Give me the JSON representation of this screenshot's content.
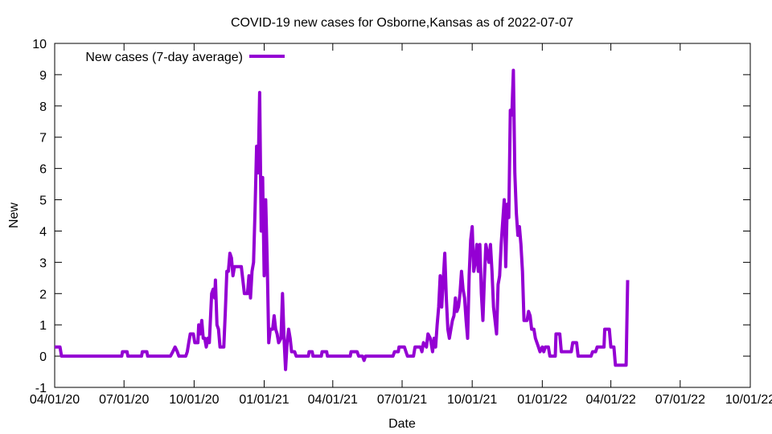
{
  "chart_data": {
    "type": "line",
    "title": "COVID-19 new cases for Osborne,Kansas as of 2022-07-07",
    "xlabel": "Date",
    "ylabel": "New",
    "xlim": [
      "2020-04-01",
      "2022-10-01"
    ],
    "ylim": [
      -1,
      10
    ],
    "grid": false,
    "legend_position": "top-left",
    "x_tick_labels": [
      "04/01/20",
      "07/01/20",
      "10/01/20",
      "01/01/21",
      "04/01/21",
      "07/01/21",
      "10/01/21",
      "01/01/22",
      "04/01/22",
      "07/01/22",
      "10/01/22"
    ],
    "y_tick_labels": [
      "-1",
      "0",
      "1",
      "2",
      "3",
      "4",
      "5",
      "6",
      "7",
      "8",
      "9",
      "10"
    ],
    "series": [
      {
        "name": "New cases (7-day average)",
        "color": "#9400d3",
        "points": [
          [
            "2020-04-01",
            0.29
          ],
          [
            "2020-04-08",
            0.29
          ],
          [
            "2020-04-10",
            0
          ],
          [
            "2020-06-28",
            0
          ],
          [
            "2020-06-29",
            0.14
          ],
          [
            "2020-07-05",
            0.14
          ],
          [
            "2020-07-06",
            0
          ],
          [
            "2020-07-24",
            0
          ],
          [
            "2020-07-25",
            0.14
          ],
          [
            "2020-07-31",
            0.14
          ],
          [
            "2020-08-01",
            0
          ],
          [
            "2020-08-31",
            0
          ],
          [
            "2020-09-03",
            0.14
          ],
          [
            "2020-09-06",
            0.29
          ],
          [
            "2020-09-09",
            0.14
          ],
          [
            "2020-09-11",
            0
          ],
          [
            "2020-09-20",
            0
          ],
          [
            "2020-09-22",
            0.14
          ],
          [
            "2020-09-24",
            0.43
          ],
          [
            "2020-09-26",
            0.71
          ],
          [
            "2020-09-30",
            0.71
          ],
          [
            "2020-10-02",
            0.43
          ],
          [
            "2020-10-06",
            0.43
          ],
          [
            "2020-10-07",
            1.0
          ],
          [
            "2020-10-09",
            0.71
          ],
          [
            "2020-10-11",
            1.14
          ],
          [
            "2020-10-13",
            0.57
          ],
          [
            "2020-10-15",
            0.57
          ],
          [
            "2020-10-17",
            0.29
          ],
          [
            "2020-10-19",
            0.57
          ],
          [
            "2020-10-21",
            0.43
          ],
          [
            "2020-10-24",
            2.0
          ],
          [
            "2020-10-26",
            2.14
          ],
          [
            "2020-10-28",
            1.86
          ],
          [
            "2020-10-29",
            2.43
          ],
          [
            "2020-10-31",
            1.0
          ],
          [
            "2020-11-02",
            0.86
          ],
          [
            "2020-11-04",
            0.29
          ],
          [
            "2020-11-09",
            0.29
          ],
          [
            "2020-11-11",
            1.43
          ],
          [
            "2020-11-13",
            2.71
          ],
          [
            "2020-11-15",
            2.71
          ],
          [
            "2020-11-17",
            3.29
          ],
          [
            "2020-11-19",
            3.14
          ],
          [
            "2020-11-21",
            2.57
          ],
          [
            "2020-11-23",
            2.86
          ],
          [
            "2020-12-02",
            2.86
          ],
          [
            "2020-12-04",
            2.43
          ],
          [
            "2020-12-06",
            2.0
          ],
          [
            "2020-12-10",
            2.0
          ],
          [
            "2020-12-12",
            2.57
          ],
          [
            "2020-12-14",
            1.86
          ],
          [
            "2020-12-16",
            2.71
          ],
          [
            "2020-12-18",
            3.0
          ],
          [
            "2020-12-20",
            4.71
          ],
          [
            "2020-12-22",
            6.71
          ],
          [
            "2020-12-24",
            5.86
          ],
          [
            "2020-12-26",
            8.43
          ],
          [
            "2020-12-28",
            4.0
          ],
          [
            "2020-12-30",
            5.71
          ],
          [
            "2021-01-01",
            2.57
          ],
          [
            "2021-01-03",
            5.0
          ],
          [
            "2021-01-05",
            3.0
          ],
          [
            "2021-01-07",
            0.43
          ],
          [
            "2021-01-09",
            0.86
          ],
          [
            "2021-01-12",
            0.86
          ],
          [
            "2021-01-14",
            1.29
          ],
          [
            "2021-01-16",
            0.86
          ],
          [
            "2021-01-18",
            0.71
          ],
          [
            "2021-01-20",
            0.43
          ],
          [
            "2021-01-23",
            0.57
          ],
          [
            "2021-01-25",
            2.0
          ],
          [
            "2021-01-27",
            0.57
          ],
          [
            "2021-01-29",
            -0.43
          ],
          [
            "2021-01-31",
            0.43
          ],
          [
            "2021-02-02",
            0.86
          ],
          [
            "2021-02-04",
            0.57
          ],
          [
            "2021-02-06",
            0.14
          ],
          [
            "2021-02-10",
            0.14
          ],
          [
            "2021-02-12",
            0
          ],
          [
            "2021-02-28",
            0
          ],
          [
            "2021-03-01",
            0.14
          ],
          [
            "2021-03-05",
            0.14
          ],
          [
            "2021-03-06",
            0
          ],
          [
            "2021-03-17",
            0
          ],
          [
            "2021-03-18",
            0.14
          ],
          [
            "2021-03-24",
            0.14
          ],
          [
            "2021-03-25",
            0
          ],
          [
            "2021-04-24",
            0
          ],
          [
            "2021-04-25",
            0.14
          ],
          [
            "2021-05-03",
            0.14
          ],
          [
            "2021-05-05",
            0
          ],
          [
            "2021-05-10",
            0
          ],
          [
            "2021-05-12",
            -0.14
          ],
          [
            "2021-05-14",
            0
          ],
          [
            "2021-06-19",
            0
          ],
          [
            "2021-06-21",
            0.14
          ],
          [
            "2021-06-26",
            0.14
          ],
          [
            "2021-06-27",
            0.29
          ],
          [
            "2021-07-04",
            0.29
          ],
          [
            "2021-07-06",
            0.14
          ],
          [
            "2021-07-08",
            0
          ],
          [
            "2021-07-16",
            0
          ],
          [
            "2021-07-18",
            0.29
          ],
          [
            "2021-07-25",
            0.29
          ],
          [
            "2021-07-27",
            0.14
          ],
          [
            "2021-07-29",
            0.43
          ],
          [
            "2021-08-02",
            0.29
          ],
          [
            "2021-08-04",
            0.71
          ],
          [
            "2021-08-07",
            0.57
          ],
          [
            "2021-08-10",
            0.14
          ],
          [
            "2021-08-12",
            0.57
          ],
          [
            "2021-08-14",
            0.29
          ],
          [
            "2021-08-16",
            1.0
          ],
          [
            "2021-08-18",
            1.57
          ],
          [
            "2021-08-20",
            2.57
          ],
          [
            "2021-08-22",
            1.57
          ],
          [
            "2021-08-24",
            2.43
          ],
          [
            "2021-08-26",
            3.29
          ],
          [
            "2021-08-28",
            1.86
          ],
          [
            "2021-08-30",
            0.86
          ],
          [
            "2021-09-01",
            0.57
          ],
          [
            "2021-09-03",
            0.86
          ],
          [
            "2021-09-05",
            1.14
          ],
          [
            "2021-09-07",
            1.29
          ],
          [
            "2021-09-09",
            1.86
          ],
          [
            "2021-09-11",
            1.43
          ],
          [
            "2021-09-13",
            1.57
          ],
          [
            "2021-09-15",
            2.0
          ],
          [
            "2021-09-17",
            2.71
          ],
          [
            "2021-09-19",
            2.14
          ],
          [
            "2021-09-21",
            1.86
          ],
          [
            "2021-09-23",
            1.14
          ],
          [
            "2021-09-25",
            0.57
          ],
          [
            "2021-09-27",
            2.57
          ],
          [
            "2021-09-29",
            3.71
          ],
          [
            "2021-10-01",
            4.14
          ],
          [
            "2021-10-03",
            2.71
          ],
          [
            "2021-10-05",
            3.0
          ],
          [
            "2021-10-07",
            3.57
          ],
          [
            "2021-10-09",
            2.71
          ],
          [
            "2021-10-11",
            3.57
          ],
          [
            "2021-10-13",
            2.0
          ],
          [
            "2021-10-15",
            1.14
          ],
          [
            "2021-10-17",
            2.43
          ],
          [
            "2021-10-19",
            3.57
          ],
          [
            "2021-10-21",
            3.29
          ],
          [
            "2021-10-23",
            3.0
          ],
          [
            "2021-10-25",
            3.57
          ],
          [
            "2021-10-27",
            2.71
          ],
          [
            "2021-10-29",
            1.57
          ],
          [
            "2021-10-31",
            1.14
          ],
          [
            "2021-11-02",
            0.71
          ],
          [
            "2021-11-04",
            2.29
          ],
          [
            "2021-11-06",
            2.57
          ],
          [
            "2021-11-08",
            3.57
          ],
          [
            "2021-11-10",
            4.29
          ],
          [
            "2021-11-12",
            5.0
          ],
          [
            "2021-11-14",
            2.86
          ],
          [
            "2021-11-16",
            4.86
          ],
          [
            "2021-11-18",
            4.43
          ],
          [
            "2021-11-20",
            7.86
          ],
          [
            "2021-11-22",
            7.71
          ],
          [
            "2021-11-24",
            9.14
          ],
          [
            "2021-11-26",
            5.86
          ],
          [
            "2021-11-28",
            4.57
          ],
          [
            "2021-11-30",
            3.86
          ],
          [
            "2021-12-02",
            4.14
          ],
          [
            "2021-12-04",
            3.57
          ],
          [
            "2021-12-06",
            2.71
          ],
          [
            "2021-12-08",
            1.14
          ],
          [
            "2021-12-12",
            1.14
          ],
          [
            "2021-12-14",
            1.43
          ],
          [
            "2021-12-16",
            1.29
          ],
          [
            "2021-12-18",
            0.86
          ],
          [
            "2021-12-21",
            0.86
          ],
          [
            "2021-12-23",
            0.57
          ],
          [
            "2021-12-25",
            0.43
          ],
          [
            "2021-12-27",
            0.29
          ],
          [
            "2021-12-29",
            0.14
          ],
          [
            "2022-01-01",
            0.29
          ],
          [
            "2022-01-03",
            0.14
          ],
          [
            "2022-01-05",
            0.29
          ],
          [
            "2022-01-09",
            0.29
          ],
          [
            "2022-01-11",
            0
          ],
          [
            "2022-01-18",
            0
          ],
          [
            "2022-01-19",
            0.71
          ],
          [
            "2022-01-24",
            0.71
          ],
          [
            "2022-01-26",
            0.14
          ],
          [
            "2022-02-08",
            0.14
          ],
          [
            "2022-02-10",
            0.43
          ],
          [
            "2022-02-15",
            0.43
          ],
          [
            "2022-02-17",
            0
          ],
          [
            "2022-03-06",
            0
          ],
          [
            "2022-03-08",
            0.14
          ],
          [
            "2022-03-12",
            0.14
          ],
          [
            "2022-03-14",
            0.29
          ],
          [
            "2022-03-23",
            0.29
          ],
          [
            "2022-03-24",
            0.86
          ],
          [
            "2022-03-30",
            0.86
          ],
          [
            "2022-04-01",
            0.29
          ],
          [
            "2022-04-05",
            0.29
          ],
          [
            "2022-04-07",
            -0.29
          ],
          [
            "2022-04-21",
            -0.29
          ],
          [
            "2022-04-23",
            2.43
          ]
        ]
      }
    ]
  }
}
